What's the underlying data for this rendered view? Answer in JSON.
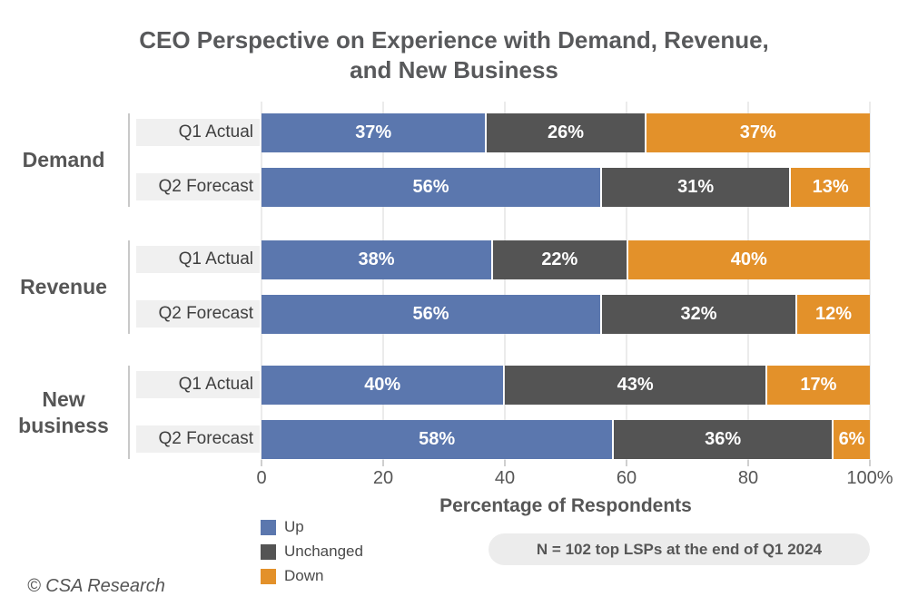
{
  "title": {
    "line1": "CEO Perspective on Experience with Demand, Revenue,",
    "line2": "and New Business"
  },
  "axis": {
    "label": "Percentage of Respondents",
    "ticks": [
      "0",
      "20",
      "40",
      "60",
      "80",
      "100%"
    ],
    "min": 0,
    "max": 100
  },
  "legend": {
    "items": [
      {
        "label": "Up",
        "color": "#5b77ae"
      },
      {
        "label": "Unchanged",
        "color": "#545454"
      },
      {
        "label": "Down",
        "color": "#e3912a"
      }
    ]
  },
  "note": "N = 102 top LSPs at the end of Q1 2024",
  "footer": "© CSA Research",
  "colors": {
    "up": "#5b77ae",
    "unchanged": "#545454",
    "down": "#e3912a",
    "title_text": "#58595b",
    "row_label_bg": "#f0f0f0",
    "note_bg": "#ececec",
    "gridline": "#ebebeb",
    "bar_value_text": "#ffffff"
  },
  "chart_data": {
    "type": "bar",
    "orientation": "horizontal",
    "stacked": true,
    "title": "CEO Perspective on Experience with Demand, Revenue, and New Business",
    "xlabel": "Percentage of Respondents",
    "xlim": [
      0,
      100
    ],
    "x_ticks": [
      0,
      20,
      40,
      60,
      80,
      100
    ],
    "grid": true,
    "legend_position": "bottom-left",
    "value_label_suffix": "%",
    "series_order": [
      "Up",
      "Unchanged",
      "Down"
    ],
    "groups": [
      {
        "label": "Demand",
        "rows": [
          {
            "label": "Q1 Actual",
            "values": {
              "Up": 37,
              "Unchanged": 26,
              "Down": 37
            }
          },
          {
            "label": "Q2 Forecast",
            "values": {
              "Up": 56,
              "Unchanged": 31,
              "Down": 13
            }
          }
        ]
      },
      {
        "label": "Revenue",
        "rows": [
          {
            "label": "Q1 Actual",
            "values": {
              "Up": 38,
              "Unchanged": 22,
              "Down": 40
            }
          },
          {
            "label": "Q2 Forecast",
            "values": {
              "Up": 56,
              "Unchanged": 32,
              "Down": 12
            }
          }
        ]
      },
      {
        "label": "New business",
        "rows": [
          {
            "label": "Q1 Actual",
            "values": {
              "Up": 40,
              "Unchanged": 43,
              "Down": 17
            }
          },
          {
            "label": "Q2 Forecast",
            "values": {
              "Up": 58,
              "Unchanged": 36,
              "Down": 6
            }
          }
        ]
      }
    ]
  }
}
